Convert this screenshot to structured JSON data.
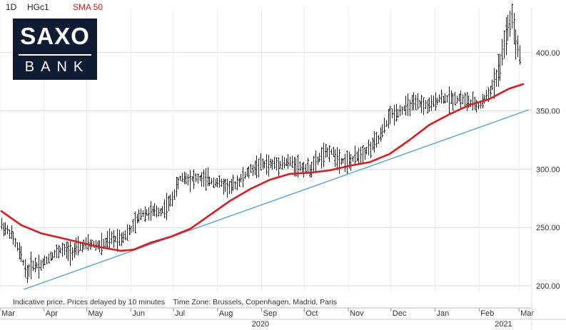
{
  "header": {
    "timeframe": "1D",
    "symbol": "HGc1",
    "indicator": "SMA 50",
    "indicator_color": "#e0191b"
  },
  "logo": {
    "line1": "SAXO",
    "line2": "BANK",
    "background": "#0f1b33"
  },
  "disclaimer": "Indicative price. Prices delayed by 10 minutes    Time Zone: Brussels, Copenhagen, Madrid, Paris",
  "chart_data": {
    "type": "line",
    "title": "",
    "xlabel": "",
    "ylabel": "",
    "ylim": [
      192,
      440
    ],
    "y_ticks": [
      "200.00",
      "250.00",
      "300.00",
      "350.00",
      "400.00"
    ],
    "x_ticks": [
      "Mar",
      "Apr",
      "May",
      "Jun",
      "Jul",
      "Aug",
      "Sep",
      "Oct",
      "Nov",
      "Dec",
      "Jan",
      "Feb",
      "Mar"
    ],
    "year_labels": [
      "2020",
      "2021"
    ],
    "grid": true,
    "price_series_name": "HGc1",
    "price": [
      [
        "2020-03-02",
        252
      ],
      [
        "2020-03-09",
        244
      ],
      [
        "2020-03-16",
        225
      ],
      [
        "2020-03-20",
        210
      ],
      [
        "2020-03-23",
        218
      ],
      [
        "2020-03-30",
        218
      ],
      [
        "2020-04-06",
        226
      ],
      [
        "2020-04-13",
        231
      ],
      [
        "2020-04-20",
        229
      ],
      [
        "2020-04-27",
        234
      ],
      [
        "2020-05-04",
        236
      ],
      [
        "2020-05-11",
        234
      ],
      [
        "2020-05-18",
        240
      ],
      [
        "2020-05-25",
        241
      ],
      [
        "2020-06-01",
        248
      ],
      [
        "2020-06-08",
        262
      ],
      [
        "2020-06-15",
        263
      ],
      [
        "2020-06-22",
        264
      ],
      [
        "2020-06-29",
        272
      ],
      [
        "2020-07-06",
        293
      ],
      [
        "2020-07-13",
        292
      ],
      [
        "2020-07-20",
        292
      ],
      [
        "2020-07-27",
        290
      ],
      [
        "2020-08-03",
        288
      ],
      [
        "2020-08-10",
        284
      ],
      [
        "2020-08-17",
        291
      ],
      [
        "2020-08-24",
        299
      ],
      [
        "2020-08-31",
        304
      ],
      [
        "2020-09-07",
        304
      ],
      [
        "2020-09-14",
        305
      ],
      [
        "2020-09-21",
        306
      ],
      [
        "2020-09-28",
        302
      ],
      [
        "2020-10-05",
        300
      ],
      [
        "2020-10-12",
        310
      ],
      [
        "2020-10-19",
        316
      ],
      [
        "2020-10-26",
        308
      ],
      [
        "2020-11-02",
        306
      ],
      [
        "2020-11-09",
        313
      ],
      [
        "2020-11-16",
        318
      ],
      [
        "2020-11-23",
        327
      ],
      [
        "2020-11-30",
        346
      ],
      [
        "2020-12-07",
        350
      ],
      [
        "2020-12-14",
        355
      ],
      [
        "2020-12-21",
        356
      ],
      [
        "2020-12-28",
        354
      ],
      [
        "2021-01-04",
        361
      ],
      [
        "2021-01-11",
        360
      ],
      [
        "2021-01-18",
        361
      ],
      [
        "2021-01-25",
        357
      ],
      [
        "2021-02-01",
        354
      ],
      [
        "2021-02-08",
        366
      ],
      [
        "2021-02-15",
        383
      ],
      [
        "2021-02-19",
        412
      ],
      [
        "2021-02-24",
        428
      ],
      [
        "2021-02-26",
        410
      ],
      [
        "2021-03-02",
        397
      ]
    ],
    "series": [
      {
        "name": "SMA 50",
        "color": "#e0191b",
        "points": [
          [
            "2020-03-02",
            264
          ],
          [
            "2020-03-16",
            252
          ],
          [
            "2020-03-30",
            245
          ],
          [
            "2020-04-13",
            241
          ],
          [
            "2020-04-27",
            237
          ],
          [
            "2020-05-11",
            233
          ],
          [
            "2020-05-25",
            230
          ],
          [
            "2020-06-03",
            231
          ],
          [
            "2020-06-15",
            237
          ],
          [
            "2020-06-29",
            242
          ],
          [
            "2020-07-13",
            249
          ],
          [
            "2020-07-27",
            261
          ],
          [
            "2020-08-10",
            273
          ],
          [
            "2020-08-24",
            283
          ],
          [
            "2020-09-07",
            291
          ],
          [
            "2020-09-21",
            296
          ],
          [
            "2020-10-05",
            297
          ],
          [
            "2020-10-19",
            299
          ],
          [
            "2020-11-02",
            303
          ],
          [
            "2020-11-16",
            306
          ],
          [
            "2020-11-30",
            313
          ],
          [
            "2020-12-14",
            325
          ],
          [
            "2020-12-28",
            338
          ],
          [
            "2021-01-11",
            347
          ],
          [
            "2021-01-25",
            355
          ],
          [
            "2021-02-08",
            360
          ],
          [
            "2021-02-22",
            369
          ],
          [
            "2021-03-04",
            373
          ]
        ]
      },
      {
        "name": "",
        "color": "#4fa6d8",
        "points": [
          [
            "2020-03-18",
            197
          ],
          [
            "2021-03-08",
            351
          ]
        ]
      }
    ]
  }
}
